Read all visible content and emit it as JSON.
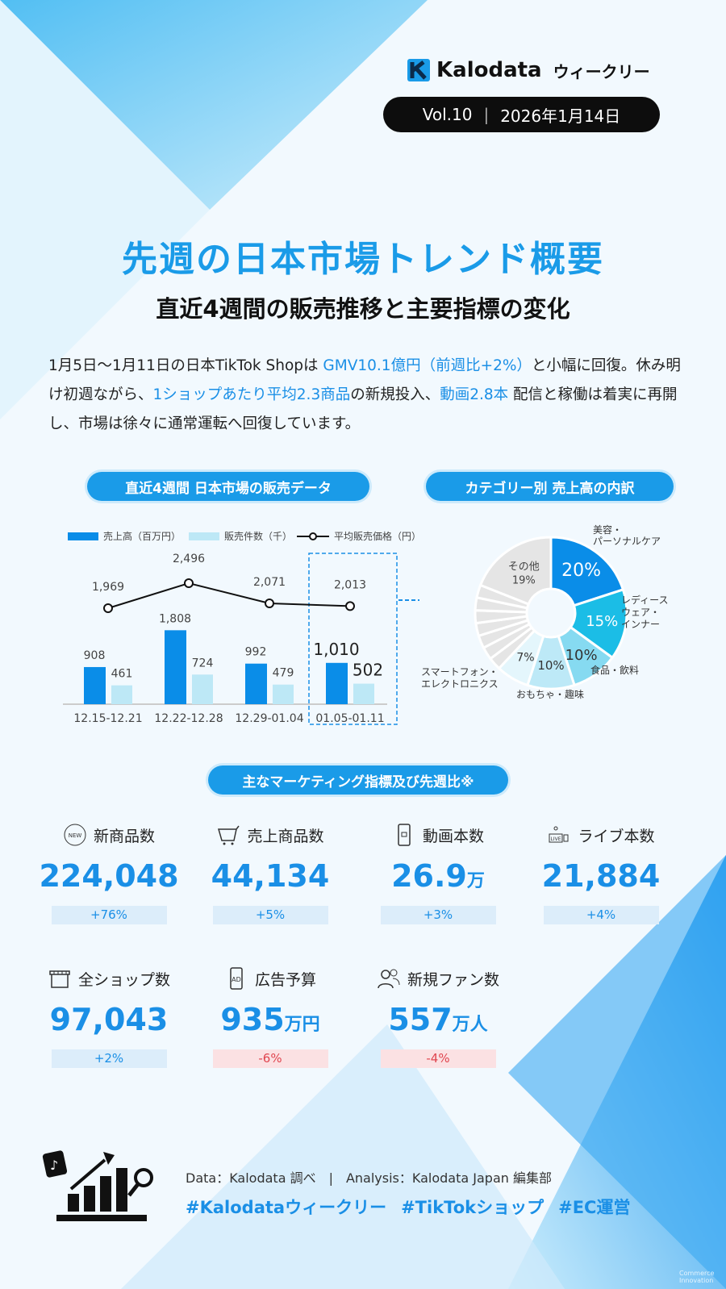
{
  "header": {
    "brand": "Kalodata",
    "series_name": "ウィークリー",
    "volume": "Vol.10",
    "separator": "|",
    "date": "2026年1月14日"
  },
  "title": "先週の日本市場トレンド概要",
  "subtitle": "直近4週間の販売推移と主要指標の変化",
  "summary": {
    "p1": "1月5日～1月11日の日本TikTok Shopは ",
    "h1": "GMV10.1億円（前週比+2%）",
    "p2": "と小幅に回復。休み明け初週ながら、",
    "h2": "1ショップあたり平均2.3商品",
    "p3": "の新規投入、",
    "h3": "動画2.8本",
    "p4": " 配信と稼働は着実に再開し、市場は徐々に通常運転へ回復しています。"
  },
  "sections": {
    "sales": "直近4週間 日本市場の販売データ",
    "category": "カテゴリー別 売上高の内訳",
    "marketing": "主なマーケティング指標及び先週比※"
  },
  "chart_data": [
    {
      "type": "bar+line",
      "categories": [
        "12.15-12.21",
        "12.22-12.28",
        "12.29-01.04",
        "01.05-01.11"
      ],
      "series": [
        {
          "name": "売上高（百万円）",
          "type": "bar",
          "color": "#0a8de8",
          "values": [
            908,
            1808,
            992,
            1010
          ],
          "labels": [
            "908",
            "1,808",
            "992",
            "1,010"
          ]
        },
        {
          "name": "販売件数（千）",
          "type": "bar",
          "color": "#bde8f6",
          "values": [
            461,
            724,
            479,
            502
          ],
          "labels": [
            "461",
            "724",
            "479",
            "502"
          ]
        },
        {
          "name": "平均販売価格（円）",
          "type": "line",
          "color": "#111111",
          "values": [
            1969,
            2496,
            2071,
            2013
          ],
          "labels": [
            "1,969",
            "2,496",
            "2,071",
            "2,013"
          ]
        }
      ],
      "highlight_category": "01.05-01.11",
      "legend": "top"
    },
    {
      "type": "pie",
      "slices": [
        {
          "label": "美容・パーソナルケア",
          "value": 20,
          "text": "20%",
          "color": "#0a8de8"
        },
        {
          "label": "レディースウェア・インナー",
          "value": 15,
          "text": "15%",
          "color": "#1bbde6"
        },
        {
          "label": "食品・飲料",
          "value": 10,
          "text": "10%",
          "color": "#86daf1"
        },
        {
          "label": "おもちゃ・趣味",
          "value": 10,
          "text": "10%",
          "color": "#bde9f7"
        },
        {
          "label": "スマートフォン・エレクトロニクス",
          "value": 7,
          "text": "7%",
          "color": "#e4f6fc"
        },
        {
          "label": "その他",
          "value": 19,
          "text": "19%",
          "color": "#e5e5e5"
        }
      ],
      "label_lines": {
        "beauty": [
          "美容・",
          "パーソナルケア"
        ],
        "ladies": [
          "レディース",
          "ウェア・",
          "インナー"
        ],
        "food": "食品・飲料",
        "toys": "おもちゃ・趣味",
        "phone": [
          "スマートフォン・",
          "エレクトロニクス"
        ],
        "other": "その他"
      }
    }
  ],
  "metrics": [
    {
      "label": "新商品数",
      "icon": "new-badge-icon",
      "value": "224,048",
      "unit": "",
      "change": "+76%",
      "trend": "up"
    },
    {
      "label": "売上商品数",
      "icon": "shopping-cart-icon",
      "value": "44,134",
      "unit": "",
      "change": "+5%",
      "trend": "up"
    },
    {
      "label": "動画本数",
      "icon": "smartphone-video-icon",
      "value": "26.9",
      "unit": "万",
      "change": "+3%",
      "trend": "up"
    },
    {
      "label": "ライブ本数",
      "icon": "live-icon",
      "value": "21,884",
      "unit": "",
      "change": "+4%",
      "trend": "up"
    },
    {
      "label": "全ショップ数",
      "icon": "store-icon",
      "value": "97,043",
      "unit": "",
      "change": "+2%",
      "trend": "up"
    },
    {
      "label": "広告予算",
      "icon": "ad-phone-icon",
      "value": "935",
      "unit": "万円",
      "change": "-6%",
      "trend": "down"
    },
    {
      "label": "新規ファン数",
      "icon": "users-icon",
      "value": "557",
      "unit": "万人",
      "change": "-4%",
      "trend": "down"
    }
  ],
  "footer": {
    "credit": "Data：Kalodata 調べ　|　Analysis：Kalodata Japan 編集部",
    "tags": [
      "#Kalodataウィークリー",
      "#TikTokショップ",
      "#EC運営"
    ],
    "watermark": "Commerce Innovation"
  },
  "colors": {
    "accent": "#1a9be8",
    "positive": "#1a8fe6",
    "negative": "#e0454f"
  }
}
